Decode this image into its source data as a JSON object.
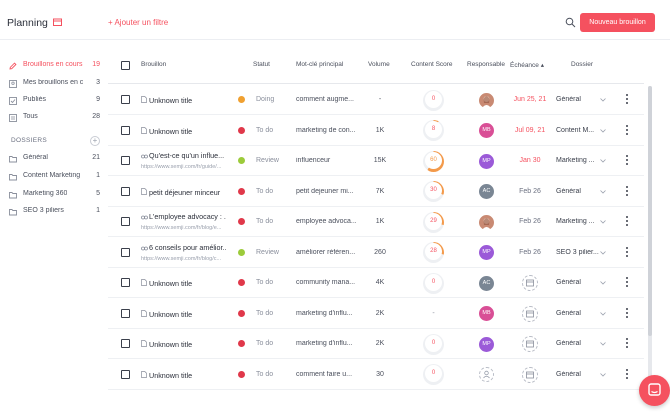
{
  "header": {
    "title": "Planning",
    "add_filter": "+ Ajouter un filtre",
    "new_draft_button": "Nouveau brouillon"
  },
  "sidebar": {
    "items": [
      {
        "label": "Brouillons en cours",
        "count": "19",
        "icon": "pencil-icon",
        "active": true
      },
      {
        "label": "Mes brouillons en c...",
        "count": "3",
        "icon": "user-icon",
        "active": false
      },
      {
        "label": "Publiés",
        "count": "9",
        "icon": "check-icon",
        "active": false
      },
      {
        "label": "Tous",
        "count": "28",
        "icon": "list-icon",
        "active": false
      }
    ],
    "dossiers_title": "DOSSIERS",
    "dossiers": [
      {
        "label": "Général",
        "count": "21"
      },
      {
        "label": "Content Marketing",
        "count": "1"
      },
      {
        "label": "Marketing 360",
        "count": "5"
      },
      {
        "label": "SEO 3 piliers",
        "count": "1"
      }
    ]
  },
  "table": {
    "headers": {
      "brouillon": "Brouillon",
      "statut": "Statut",
      "motcle": "Mot-clé principal",
      "volume": "Volume",
      "score": "Content Score",
      "responsable": "Responsable",
      "echeance": "Échéance ▴",
      "dossier": "Dossier"
    },
    "rows": [
      {
        "type": "doc",
        "title": "Unknown title",
        "url": "",
        "status": "Doing",
        "status_color": "#f0a030",
        "keyword": "comment augme...",
        "volume": "-",
        "score": "0",
        "avatar_text": "",
        "avatar_kind": "photo",
        "avatar_color": "#c98a73",
        "due": "Jun 25, 21",
        "due_color": "#f5515f",
        "due_empty": false,
        "dossier": "Général"
      },
      {
        "type": "doc",
        "title": "Unknown title",
        "url": "",
        "status": "To do",
        "status_color": "#e0384a",
        "keyword": "marketing de con...",
        "volume": "1K",
        "score": "8",
        "avatar_text": "MB",
        "avatar_kind": "initials",
        "avatar_color": "#d94f96",
        "due": "Jul 09, 21",
        "due_color": "#f5515f",
        "due_empty": false,
        "dossier": "Content M..."
      },
      {
        "type": "link",
        "title": "Qu'est-ce qu'un influe...",
        "url": "https://www.semji.com/fr/guide/...",
        "status": "Review",
        "status_color": "#9ccb3b",
        "keyword": "influenceur",
        "volume": "15K",
        "score": "60",
        "avatar_text": "MP",
        "avatar_kind": "initials",
        "avatar_color": "#9b5ad8",
        "due": "Jan 30",
        "due_color": "#f5515f",
        "due_empty": false,
        "dossier": "Marketing ..."
      },
      {
        "type": "doc",
        "title": "petit déjeuner minceur",
        "url": "",
        "status": "To do",
        "status_color": "#e0384a",
        "keyword": "petit dejeuner mi...",
        "volume": "7K",
        "score": "30",
        "avatar_text": "AC",
        "avatar_kind": "initials",
        "avatar_color": "#7a8694",
        "due": "Feb 26",
        "due_color": "#6b7080",
        "due_empty": false,
        "dossier": "Général"
      },
      {
        "type": "link",
        "title": "L'employee advocacy : ...",
        "url": "https://www.semji.com/fr/blog/e...",
        "status": "To do",
        "status_color": "#e0384a",
        "keyword": "employee advoca...",
        "volume": "1K",
        "score": "29",
        "avatar_text": "",
        "avatar_kind": "photo",
        "avatar_color": "#c98a73",
        "due": "Feb 26",
        "due_color": "#6b7080",
        "due_empty": false,
        "dossier": "Marketing ..."
      },
      {
        "type": "link",
        "title": "6 conseils pour amélior...",
        "url": "https://www.semji.com/fr/blog/c...",
        "status": "Review",
        "status_color": "#9ccb3b",
        "keyword": "améliorer référen...",
        "volume": "260",
        "score": "28",
        "avatar_text": "MP",
        "avatar_kind": "initials",
        "avatar_color": "#9b5ad8",
        "due": "Feb 26",
        "due_color": "#6b7080",
        "due_empty": false,
        "dossier": "SEO 3 pilier..."
      },
      {
        "type": "doc",
        "title": "Unknown title",
        "url": "",
        "status": "To do",
        "status_color": "#e0384a",
        "keyword": "community mana...",
        "volume": "4K",
        "score": "0",
        "avatar_text": "AC",
        "avatar_kind": "initials",
        "avatar_color": "#7a8694",
        "due": "",
        "due_color": "#6b7080",
        "due_empty": true,
        "dossier": "Général"
      },
      {
        "type": "doc",
        "title": "Unknown title",
        "url": "",
        "status": "To do",
        "status_color": "#e0384a",
        "keyword": "marketing d'influ...",
        "volume": "2K",
        "score": "-",
        "avatar_text": "MB",
        "avatar_kind": "initials",
        "avatar_color": "#d94f96",
        "due": "",
        "due_color": "#6b7080",
        "due_empty": true,
        "dossier": "Général"
      },
      {
        "type": "doc",
        "title": "Unknown title",
        "url": "",
        "status": "To do",
        "status_color": "#e0384a",
        "keyword": "marketing d'influ...",
        "volume": "2K",
        "score": "0",
        "avatar_text": "MP",
        "avatar_kind": "initials",
        "avatar_color": "#9b5ad8",
        "due": "",
        "due_color": "#6b7080",
        "due_empty": true,
        "dossier": "Général"
      },
      {
        "type": "doc",
        "title": "Unknown title",
        "url": "",
        "status": "To do",
        "status_color": "#e0384a",
        "keyword": "comment faire u...",
        "volume": "30",
        "score": "0",
        "avatar_text": "",
        "avatar_kind": "empty",
        "avatar_color": "#ffffff",
        "due": "",
        "due_color": "#6b7080",
        "due_empty": true,
        "dossier": "Général"
      }
    ]
  },
  "colors": {
    "accent": "#f5515f"
  }
}
